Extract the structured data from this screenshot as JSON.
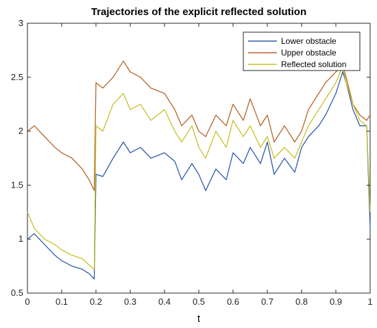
{
  "chart_data": {
    "type": "line",
    "title": "Trajectories of the explicit reflected solution",
    "xlabel": "t",
    "ylabel": "",
    "xlim": [
      0,
      1
    ],
    "ylim": [
      0.5,
      3
    ],
    "xticks": [
      0,
      0.1,
      0.2,
      0.3,
      0.4,
      0.5,
      0.6,
      0.7,
      0.8,
      0.9,
      1
    ],
    "xtick_labels": [
      "0",
      "0.1",
      "0.2",
      "0.3",
      "0.4",
      "0.5",
      "0.6",
      "0.7",
      "0.8",
      "0.9",
      "1"
    ],
    "yticks": [
      0.5,
      1,
      1.5,
      2,
      2.5,
      3
    ],
    "ytick_labels": [
      "0.5",
      "1",
      "1.5",
      "2",
      "2.5",
      "3"
    ],
    "grid": false,
    "legend_position": "top-right",
    "x": [
      0.0,
      0.02,
      0.05,
      0.08,
      0.1,
      0.13,
      0.16,
      0.18,
      0.195,
      0.2,
      0.22,
      0.25,
      0.28,
      0.3,
      0.33,
      0.36,
      0.4,
      0.43,
      0.45,
      0.48,
      0.5,
      0.52,
      0.55,
      0.58,
      0.6,
      0.63,
      0.65,
      0.68,
      0.7,
      0.72,
      0.75,
      0.78,
      0.8,
      0.82,
      0.85,
      0.87,
      0.9,
      0.92,
      0.93,
      0.95,
      0.97,
      0.99,
      1.0
    ],
    "series": [
      {
        "name": "Lower obstacle",
        "color": "#2e5aa8",
        "values": [
          1.0,
          1.05,
          0.95,
          0.85,
          0.8,
          0.75,
          0.72,
          0.68,
          0.63,
          1.6,
          1.58,
          1.75,
          1.9,
          1.8,
          1.85,
          1.75,
          1.8,
          1.72,
          1.55,
          1.7,
          1.6,
          1.45,
          1.65,
          1.55,
          1.8,
          1.7,
          1.85,
          1.7,
          1.9,
          1.6,
          1.75,
          1.62,
          1.85,
          1.95,
          2.05,
          2.15,
          2.35,
          2.55,
          2.45,
          2.2,
          2.05,
          2.05,
          1.1
        ]
      },
      {
        "name": "Upper obstacle",
        "color": "#b5642a",
        "values": [
          2.0,
          2.05,
          1.95,
          1.85,
          1.8,
          1.75,
          1.65,
          1.55,
          1.45,
          2.45,
          2.4,
          2.5,
          2.65,
          2.55,
          2.5,
          2.4,
          2.35,
          2.2,
          2.05,
          2.15,
          2.0,
          1.95,
          2.15,
          2.05,
          2.25,
          2.1,
          2.3,
          2.05,
          2.15,
          1.9,
          2.05,
          1.9,
          2.0,
          2.2,
          2.35,
          2.45,
          2.55,
          2.6,
          2.5,
          2.25,
          2.15,
          2.1,
          2.15
        ]
      },
      {
        "name": "Reflected solution",
        "color": "#c8c028",
        "values": [
          1.25,
          1.1,
          1.0,
          0.95,
          0.9,
          0.85,
          0.82,
          0.76,
          0.72,
          2.05,
          2.0,
          2.25,
          2.35,
          2.2,
          2.25,
          2.1,
          2.2,
          2.0,
          1.9,
          2.05,
          1.85,
          1.75,
          2.0,
          1.85,
          2.1,
          1.95,
          2.05,
          1.85,
          1.95,
          1.75,
          1.85,
          1.75,
          1.9,
          2.05,
          2.2,
          2.3,
          2.45,
          2.6,
          2.45,
          2.25,
          2.1,
          2.05,
          1.25
        ]
      }
    ]
  }
}
